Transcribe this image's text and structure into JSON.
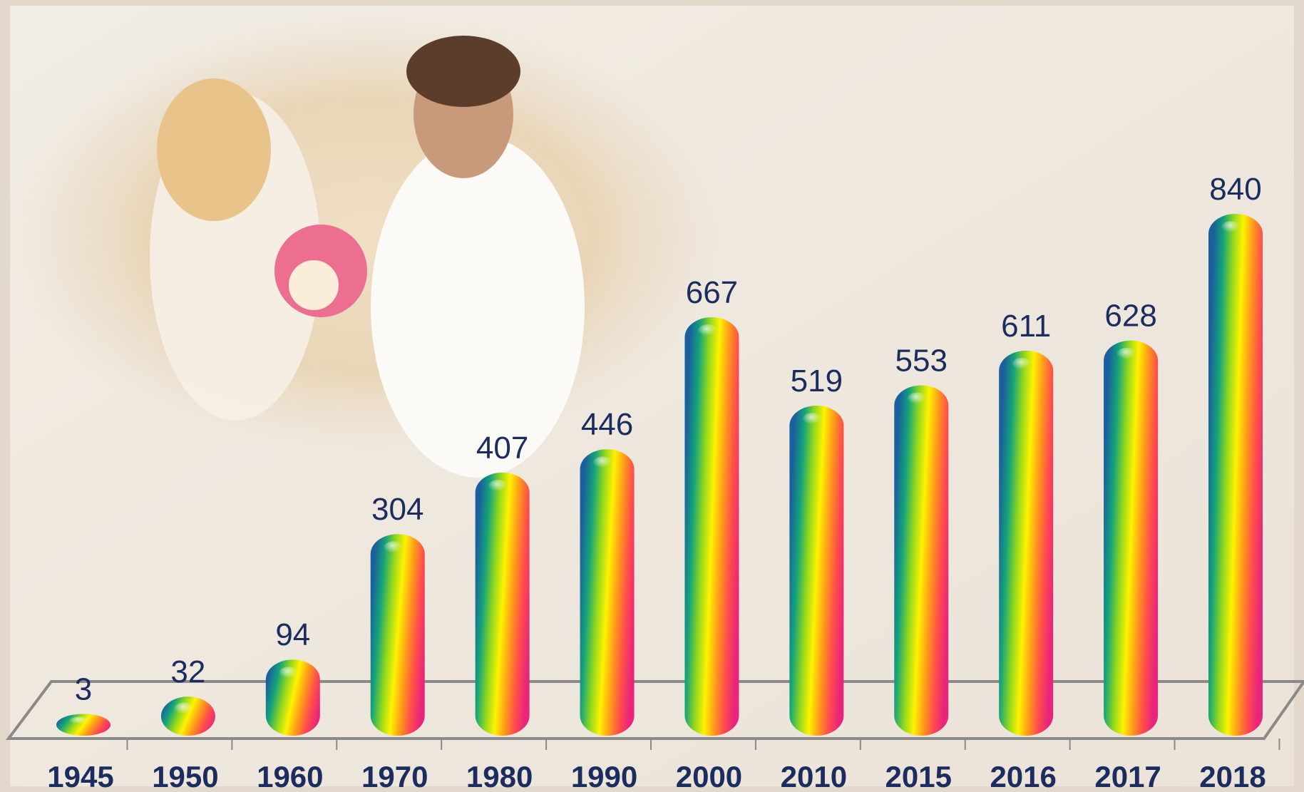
{
  "chart_data": {
    "type": "bar",
    "categories": [
      "1945",
      "1950",
      "1960",
      "1970",
      "1980",
      "1990",
      "2000",
      "2010",
      "2015",
      "2016",
      "2017",
      "2018"
    ],
    "values": [
      3,
      32,
      94,
      304,
      407,
      446,
      667,
      519,
      553,
      611,
      628,
      840
    ],
    "colors": [
      "#1b5f9c",
      "#14a37a",
      "#8fd81f",
      "#fff200",
      "#ff9a1a",
      "#ff4c4c",
      "#e8247c"
    ]
  }
}
